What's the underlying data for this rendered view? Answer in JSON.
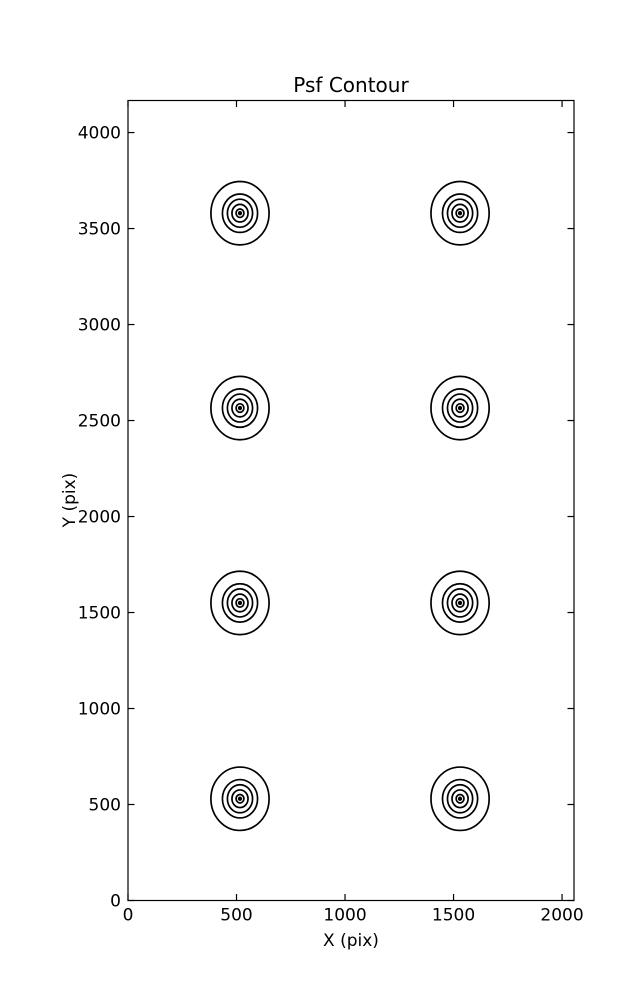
{
  "figure": {
    "background": "#ffffff",
    "foreground": "#000000"
  },
  "chart_data": {
    "type": "contour",
    "title": "Psf Contour",
    "xlabel": "X (pix)",
    "ylabel": "Y (pix)",
    "xlim": [
      0,
      2055
    ],
    "ylim": [
      0,
      4167
    ],
    "xticks": [
      0,
      500,
      1000,
      1500,
      2000
    ],
    "yticks": [
      0,
      500,
      1000,
      1500,
      2000,
      2500,
      3000,
      3500,
      4000
    ],
    "grid": false,
    "tick_direction": "in",
    "line_color": "#000000",
    "background": "#ffffff",
    "description": "8 PSF contour clusters in a 2x4 grid, each made of concentric ellipses",
    "clusters": {
      "centers": [
        {
          "x": 516,
          "y": 530
        },
        {
          "x": 1530,
          "y": 530
        },
        {
          "x": 516,
          "y": 1550
        },
        {
          "x": 1530,
          "y": 1550
        },
        {
          "x": 516,
          "y": 2565
        },
        {
          "x": 1530,
          "y": 2565
        },
        {
          "x": 516,
          "y": 3580
        },
        {
          "x": 1530,
          "y": 3580
        }
      ],
      "ring_semi_axes": [
        {
          "a": 134,
          "b": 165
        },
        {
          "a": 81,
          "b": 100
        },
        {
          "a": 58,
          "b": 73
        },
        {
          "a": 37,
          "b": 46
        },
        {
          "a": 18,
          "b": 22
        },
        {
          "a": 6,
          "b": 7
        }
      ]
    }
  }
}
